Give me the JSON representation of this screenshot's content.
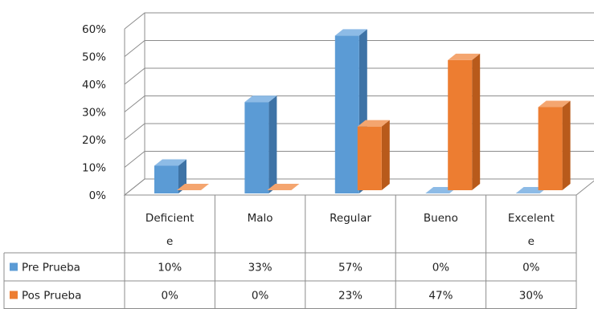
{
  "chart_data": {
    "type": "bar",
    "style": "3d-clustered-column",
    "categories": [
      "Deficiente",
      "Malo",
      "Regular",
      "Bueno",
      "Excelente"
    ],
    "category_lines": [
      [
        "Deficient",
        "e"
      ],
      [
        "Malo"
      ],
      [
        "Regular"
      ],
      [
        "Bueno"
      ],
      [
        "Excelent",
        "e"
      ]
    ],
    "series": [
      {
        "name": "Pre Prueba",
        "values": [
          10,
          33,
          57,
          0,
          0
        ],
        "labels": [
          "10%",
          "33%",
          "57%",
          "0%",
          "0%"
        ],
        "color": "#5B9BD5"
      },
      {
        "name": "Pos Prueba",
        "values": [
          0,
          0,
          23,
          47,
          30
        ],
        "labels": [
          "0%",
          "0%",
          "23%",
          "47%",
          "30%"
        ],
        "color": "#ED7D31"
      }
    ],
    "y_ticks": [
      "0%",
      "10%",
      "20%",
      "30%",
      "40%",
      "50%",
      "60%"
    ],
    "ylim": [
      0,
      60
    ],
    "grid": true,
    "legend": "data-table-left",
    "data_table": true
  },
  "colors": {
    "pre_front": "#5B9BD5",
    "pre_side": "#3E73A6",
    "pre_top": "#8DBBE6",
    "pos_front": "#ED7D31",
    "pos_side": "#B85A1B",
    "pos_top": "#F4A56F",
    "grid": "#8C8C8C",
    "table": "#8C8C8C"
  }
}
